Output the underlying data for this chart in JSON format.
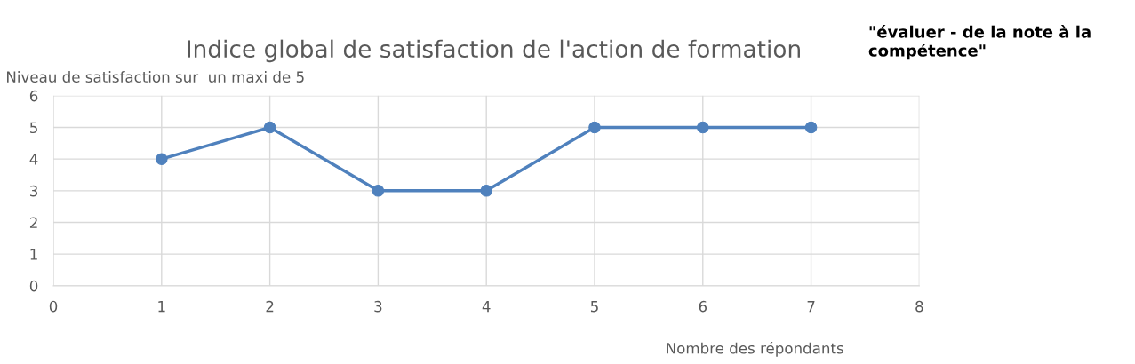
{
  "chart_data": {
    "type": "line",
    "title": "Indice global de satisfaction de l'action de formation",
    "ylabel": "Niveau de satisfaction sur  un maxi de 5",
    "xlabel": "Nombre des répondants",
    "annotations": [
      "\"évaluer - de la note à la\ncompétence\""
    ],
    "x": [
      1,
      2,
      3,
      4,
      5,
      6,
      7
    ],
    "series": [
      {
        "color": "#4f81bd",
        "values": [
          4,
          5,
          3,
          3,
          5,
          5,
          5
        ]
      }
    ],
    "xlim": [
      0,
      8
    ],
    "xticks": [
      0,
      1,
      2,
      3,
      4,
      5,
      6,
      7,
      8
    ],
    "ylim": [
      0,
      6
    ],
    "yticks": [
      0,
      1,
      2,
      3,
      4,
      5,
      6
    ],
    "grid": true,
    "marker": "circle",
    "line_style": "solid"
  }
}
